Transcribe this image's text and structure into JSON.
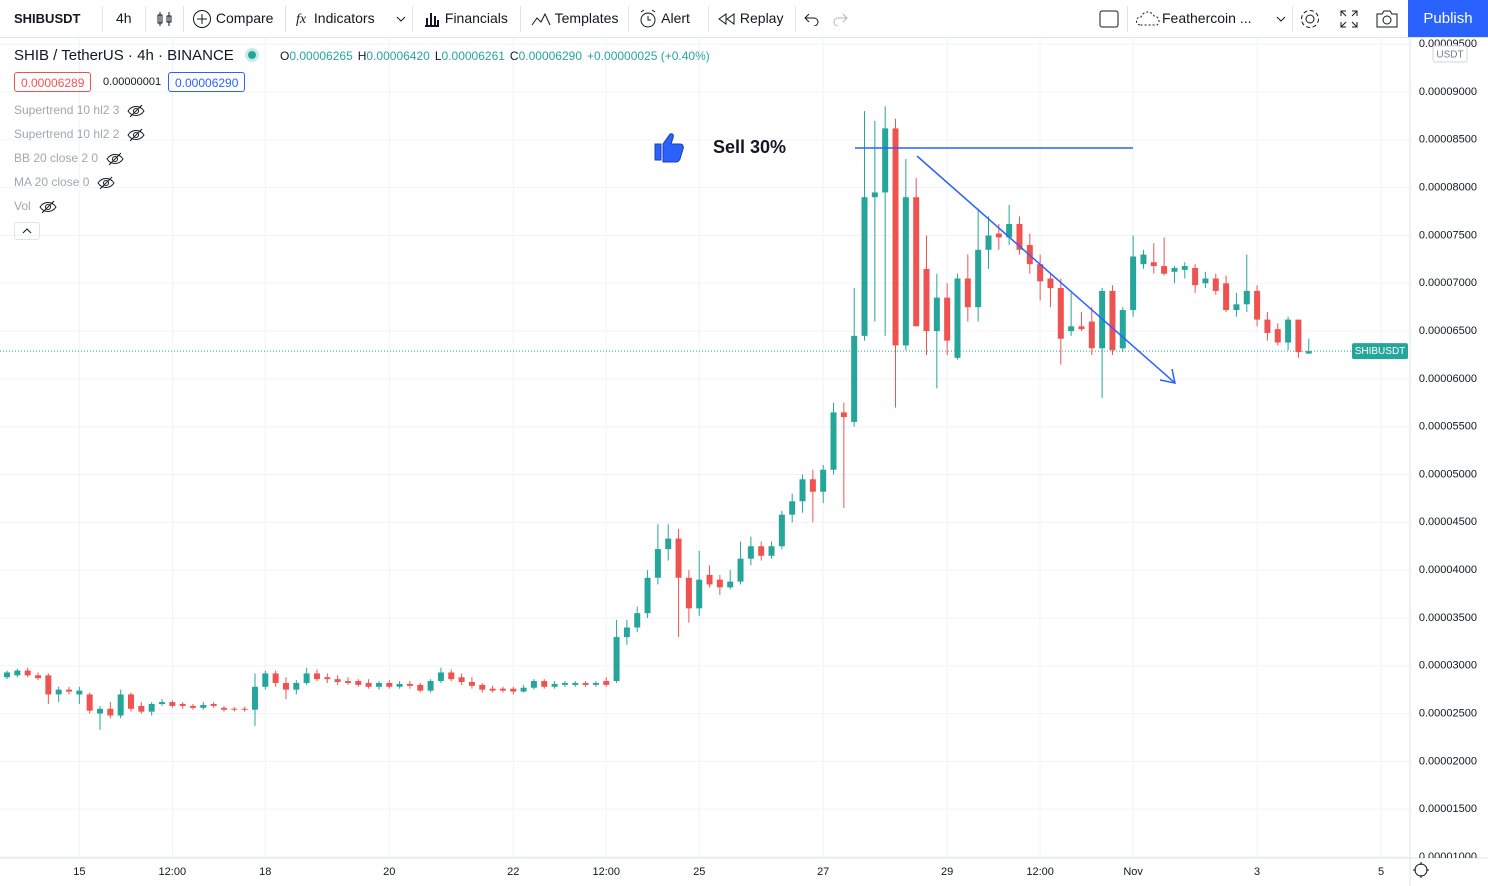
{
  "toolbar": {
    "symbol": "SHIBUSDT",
    "interval": "4h",
    "compare": "Compare",
    "indicators": "Indicators",
    "financials": "Financials",
    "templates": "Templates",
    "alert": "Alert",
    "replay": "Replay",
    "layout": "Feathercoin ...",
    "publish": "Publish"
  },
  "chart_data": {
    "type": "candlestick",
    "legend_title": "SHIB / TetherUS · 4h · BINANCE",
    "ohlc_legend": [
      {
        "key": "O",
        "text": "0.00006265"
      },
      {
        "key": "H",
        "text": "0.00006420"
      },
      {
        "key": "L",
        "text": "0.00006261"
      },
      {
        "key": "C",
        "text": "0.00006290"
      }
    ],
    "change": "+0.00000025 (+0.40%)",
    "price_boxes": [
      "0.00006289",
      "0.00000001",
      "0.00006290"
    ],
    "indicators": [
      "Supertrend 10 hl2 3",
      "Supertrend 10 hl2 2",
      "BB 20 close 2 0",
      "MA 20 close 0",
      "Vol"
    ],
    "axis_unit": "USDT",
    "price_label": "SHIBUSDT",
    "annotation": "Sell 30%",
    "up_color": "#26a69a",
    "down_color": "#ef5350",
    "grid": true,
    "candles": [
      [
        2.88e-05,
        2.95e-05,
        2.86e-05,
        2.93e-05
      ],
      [
        2.9e-05,
        2.97e-05,
        2.88e-05,
        2.95e-05
      ],
      [
        2.95e-05,
        2.98e-05,
        2.88e-05,
        2.9e-05
      ],
      [
        2.9e-05,
        2.93e-05,
        2.85e-05,
        2.87e-05
      ],
      [
        2.9e-05,
        2.92e-05,
        2.6e-05,
        2.7e-05
      ],
      [
        2.7e-05,
        2.78e-05,
        2.62e-05,
        2.75e-05
      ],
      [
        2.75e-05,
        2.78e-05,
        2.7e-05,
        2.73e-05
      ],
      [
        2.7e-05,
        2.78e-05,
        2.6e-05,
        2.74e-05
      ],
      [
        2.7e-05,
        2.72e-05,
        2.5e-05,
        2.53e-05
      ],
      [
        2.5e-05,
        2.58e-05,
        2.33e-05,
        2.55e-05
      ],
      [
        2.55e-05,
        2.62e-05,
        2.45e-05,
        2.48e-05
      ],
      [
        2.48e-05,
        2.75e-05,
        2.45e-05,
        2.7e-05
      ],
      [
        2.7e-05,
        2.72e-05,
        2.52e-05,
        2.55e-05
      ],
      [
        2.58e-05,
        2.62e-05,
        2.5e-05,
        2.52e-05
      ],
      [
        2.52e-05,
        2.62e-05,
        2.48e-05,
        2.6e-05
      ],
      [
        2.6e-05,
        2.65e-05,
        2.58e-05,
        2.62e-05
      ],
      [
        2.62e-05,
        2.64e-05,
        2.56e-05,
        2.58e-05
      ],
      [
        2.6e-05,
        2.62e-05,
        2.55e-05,
        2.58e-05
      ],
      [
        2.58e-05,
        2.6e-05,
        2.54e-05,
        2.56e-05
      ],
      [
        2.56e-05,
        2.62e-05,
        2.54e-05,
        2.59e-05
      ],
      [
        2.6e-05,
        2.62e-05,
        2.56e-05,
        2.58e-05
      ],
      [
        2.56e-05,
        2.58e-05,
        2.52e-05,
        2.54e-05
      ],
      [
        2.55e-05,
        2.57e-05,
        2.52e-05,
        2.54e-05
      ],
      [
        2.55e-05,
        2.57e-05,
        2.52e-05,
        2.54e-05
      ],
      [
        2.54e-05,
        2.92e-05,
        2.37e-05,
        2.78e-05
      ],
      [
        2.78e-05,
        2.95e-05,
        2.75e-05,
        2.92e-05
      ],
      [
        2.92e-05,
        2.95e-05,
        2.78e-05,
        2.82e-05
      ],
      [
        2.82e-05,
        2.88e-05,
        2.65e-05,
        2.75e-05
      ],
      [
        2.75e-05,
        2.85e-05,
        2.7e-05,
        2.82e-05
      ],
      [
        2.82e-05,
        2.98e-05,
        2.8e-05,
        2.92e-05
      ],
      [
        2.92e-05,
        2.96e-05,
        2.84e-05,
        2.86e-05
      ],
      [
        2.88e-05,
        2.92e-05,
        2.82e-05,
        2.86e-05
      ],
      [
        2.86e-05,
        2.9e-05,
        2.8e-05,
        2.83e-05
      ],
      [
        2.84e-05,
        2.88e-05,
        2.8e-05,
        2.82e-05
      ],
      [
        2.84e-05,
        2.86e-05,
        2.78e-05,
        2.8e-05
      ],
      [
        2.82e-05,
        2.86e-05,
        2.76e-05,
        2.78e-05
      ],
      [
        2.78e-05,
        2.84e-05,
        2.75e-05,
        2.82e-05
      ],
      [
        2.82e-05,
        2.85e-05,
        2.76e-05,
        2.78e-05
      ],
      [
        2.78e-05,
        2.84e-05,
        2.76e-05,
        2.81e-05
      ],
      [
        2.81e-05,
        2.84e-05,
        2.76e-05,
        2.79e-05
      ],
      [
        2.8e-05,
        2.82e-05,
        2.72e-05,
        2.74e-05
      ],
      [
        2.74e-05,
        2.86e-05,
        2.72e-05,
        2.84e-05
      ],
      [
        2.84e-05,
        2.98e-05,
        2.82e-05,
        2.93e-05
      ],
      [
        2.93e-05,
        2.96e-05,
        2.84e-05,
        2.86e-05
      ],
      [
        2.88e-05,
        2.92e-05,
        2.8e-05,
        2.83e-05
      ],
      [
        2.83e-05,
        2.88e-05,
        2.76e-05,
        2.79e-05
      ],
      [
        2.8e-05,
        2.82e-05,
        2.72e-05,
        2.75e-05
      ],
      [
        2.76e-05,
        2.79e-05,
        2.72e-05,
        2.74e-05
      ],
      [
        2.76e-05,
        2.78e-05,
        2.72e-05,
        2.74e-05
      ],
      [
        2.76e-05,
        2.78e-05,
        2.7e-05,
        2.73e-05
      ],
      [
        2.73e-05,
        2.8e-05,
        2.72e-05,
        2.77e-05
      ],
      [
        2.77e-05,
        2.86e-05,
        2.75e-05,
        2.84e-05
      ],
      [
        2.84e-05,
        2.86e-05,
        2.76e-05,
        2.78e-05
      ],
      [
        2.78e-05,
        2.84e-05,
        2.76e-05,
        2.81e-05
      ],
      [
        2.8e-05,
        2.84e-05,
        2.78e-05,
        2.82e-05
      ],
      [
        2.8e-05,
        2.84e-05,
        2.78e-05,
        2.82e-05
      ],
      [
        2.82e-05,
        2.84e-05,
        2.78e-05,
        2.8e-05
      ],
      [
        2.8e-05,
        2.84e-05,
        2.78e-05,
        2.82e-05
      ],
      [
        2.84e-05,
        2.88e-05,
        2.78e-05,
        2.8e-05
      ],
      [
        2.84e-05,
        3.48e-05,
        2.82e-05,
        3.3e-05
      ],
      [
        3.3e-05,
        3.48e-05,
        3.22e-05,
        3.4e-05
      ],
      [
        3.4e-05,
        3.62e-05,
        3.35e-05,
        3.55e-05
      ],
      [
        3.55e-05,
        4e-05,
        3.5e-05,
        3.92e-05
      ],
      [
        3.92e-05,
        4.48e-05,
        3.85e-05,
        4.22e-05
      ],
      [
        4.22e-05,
        4.48e-05,
        4.1e-05,
        4.33e-05
      ],
      [
        4.33e-05,
        4.43e-05,
        3.3e-05,
        3.92e-05
      ],
      [
        3.92e-05,
        4e-05,
        3.45e-05,
        3.6e-05
      ],
      [
        3.6e-05,
        4.2e-05,
        3.52e-05,
        3.9e-05
      ],
      [
        3.95e-05,
        4.05e-05,
        3.82e-05,
        3.85e-05
      ],
      [
        3.9e-05,
        3.95e-05,
        3.74e-05,
        3.82e-05
      ],
      [
        3.82e-05,
        4e-05,
        3.8e-05,
        3.88e-05
      ],
      [
        3.88e-05,
        4.3e-05,
        3.85e-05,
        4.12e-05
      ],
      [
        4.12e-05,
        4.35e-05,
        4.05e-05,
        4.25e-05
      ],
      [
        4.25e-05,
        4.3e-05,
        4.1e-05,
        4.15e-05
      ],
      [
        4.15e-05,
        4.3e-05,
        4.12e-05,
        4.25e-05
      ],
      [
        4.25e-05,
        4.62e-05,
        4.22e-05,
        4.58e-05
      ],
      [
        4.58e-05,
        4.8e-05,
        4.5e-05,
        4.72e-05
      ],
      [
        4.72e-05,
        5e-05,
        4.6e-05,
        4.95e-05
      ],
      [
        4.95e-05,
        5.05e-05,
        4.5e-05,
        4.82e-05
      ],
      [
        4.82e-05,
        5.1e-05,
        4.7e-05,
        5.05e-05
      ],
      [
        5.05e-05,
        5.75e-05,
        5e-05,
        5.65e-05
      ],
      [
        5.65e-05,
        5.75e-05,
        4.65e-05,
        5.6e-05
      ],
      [
        5.55e-05,
        6.95e-05,
        5.5e-05,
        6.45e-05
      ],
      [
        6.45e-05,
        8.8e-05,
        6.4e-05,
        7.9e-05
      ],
      [
        7.9e-05,
        8.7e-05,
        6.6e-05,
        7.95e-05
      ],
      [
        7.95e-05,
        8.85e-05,
        6.45e-05,
        8.62e-05
      ],
      [
        8.62e-05,
        8.72e-05,
        5.7e-05,
        6.35e-05
      ],
      [
        6.35e-05,
        8.3e-05,
        6.3e-05,
        7.9e-05
      ],
      [
        7.9e-05,
        8.1e-05,
        6.55e-05,
        6.55e-05
      ],
      [
        7.15e-05,
        7.5e-05,
        6.25e-05,
        6.5e-05
      ],
      [
        6.5e-05,
        7.1e-05,
        5.9e-05,
        6.85e-05
      ],
      [
        6.85e-05,
        7e-05,
        6.25e-05,
        6.4e-05
      ],
      [
        6.22e-05,
        7.1e-05,
        6.2e-05,
        7.05e-05
      ],
      [
        7.05e-05,
        7.3e-05,
        6.6e-05,
        6.75e-05
      ],
      [
        6.75e-05,
        7.78e-05,
        6.6e-05,
        7.35e-05
      ],
      [
        7.35e-05,
        7.7e-05,
        7.15e-05,
        7.5e-05
      ],
      [
        7.52e-05,
        7.62e-05,
        7.35e-05,
        7.48e-05
      ],
      [
        7.48e-05,
        7.82e-05,
        7.4e-05,
        7.62e-05
      ],
      [
        7.62e-05,
        7.7e-05,
        7.3e-05,
        7.35e-05
      ],
      [
        7.4e-05,
        7.52e-05,
        7.1e-05,
        7.2e-05
      ],
      [
        7.2e-05,
        7.3e-05,
        6.82e-05,
        7.02e-05
      ],
      [
        7.05e-05,
        7.1e-05,
        6.75e-05,
        6.95e-05
      ],
      [
        6.95e-05,
        7.05e-05,
        6.15e-05,
        6.42e-05
      ],
      [
        6.5e-05,
        6.9e-05,
        6.45e-05,
        6.55e-05
      ],
      [
        6.55e-05,
        6.7e-05,
        6.5e-05,
        6.52e-05
      ],
      [
        6.6e-05,
        6.75e-05,
        6.25e-05,
        6.32e-05
      ],
      [
        6.32e-05,
        6.95e-05,
        5.8e-05,
        6.92e-05
      ],
      [
        6.92e-05,
        6.98e-05,
        6.25e-05,
        6.3e-05
      ],
      [
        6.32e-05,
        6.75e-05,
        6.28e-05,
        6.72e-05
      ],
      [
        6.72e-05,
        7.5e-05,
        6.65e-05,
        7.28e-05
      ],
      [
        7.2e-05,
        7.35e-05,
        7.15e-05,
        7.3e-05
      ],
      [
        7.22e-05,
        7.42e-05,
        7.1e-05,
        7.18e-05
      ],
      [
        7.18e-05,
        7.48e-05,
        7.08e-05,
        7.1e-05
      ],
      [
        7.12e-05,
        7.18e-05,
        7e-05,
        7.16e-05
      ],
      [
        7.14e-05,
        7.22e-05,
        7.05e-05,
        7.18e-05
      ],
      [
        7.16e-05,
        7.2e-05,
        6.9e-05,
        6.98e-05
      ],
      [
        7e-05,
        7.12e-05,
        6.95e-05,
        7.05e-05
      ],
      [
        7.05e-05,
        7.1e-05,
        6.88e-05,
        6.92e-05
      ],
      [
        7e-05,
        7.08e-05,
        6.7e-05,
        6.72e-05
      ],
      [
        6.72e-05,
        6.9e-05,
        6.65e-05,
        6.78e-05
      ],
      [
        6.78e-05,
        7.3e-05,
        6.7e-05,
        6.92e-05
      ],
      [
        6.92e-05,
        6.98e-05,
        6.55e-05,
        6.62e-05
      ],
      [
        6.62e-05,
        6.7e-05,
        6.4e-05,
        6.48e-05
      ],
      [
        6.52e-05,
        6.58e-05,
        6.35e-05,
        6.38e-05
      ],
      [
        6.38e-05,
        6.65e-05,
        6.3e-05,
        6.62e-05
      ],
      [
        6.62e-05,
        6.62e-05,
        6.22e-05,
        6.28e-05
      ],
      [
        6.265e-05,
        6.42e-05,
        6.261e-05,
        6.29e-05
      ]
    ],
    "xlim": [
      -0.68,
      135.8
    ],
    "xticks": [
      {
        "value": 7,
        "label": "15"
      },
      {
        "value": 16,
        "label": "12:00"
      },
      {
        "value": 25,
        "label": "18"
      },
      {
        "value": 37,
        "label": "20"
      },
      {
        "value": 49,
        "label": "22"
      },
      {
        "value": 58,
        "label": "12:00"
      },
      {
        "value": 67,
        "label": "25"
      },
      {
        "value": 79,
        "label": "27"
      },
      {
        "value": 91,
        "label": "29"
      },
      {
        "value": 100,
        "label": "12:00"
      },
      {
        "value": 109,
        "label": "Nov"
      },
      {
        "value": 121,
        "label": "3"
      },
      {
        "value": 133,
        "label": "5"
      }
    ],
    "ylim": [
      9.895e-06,
      9.565e-05
    ],
    "yticks": [
      {
        "value": 1e-05,
        "label": "0.00001000"
      },
      {
        "value": 1.5e-05,
        "label": "0.00001500"
      },
      {
        "value": 2e-05,
        "label": "0.00002000"
      },
      {
        "value": 2.5e-05,
        "label": "0.00002500"
      },
      {
        "value": 3e-05,
        "label": "0.00003000"
      },
      {
        "value": 3.5e-05,
        "label": "0.00003500"
      },
      {
        "value": 4e-05,
        "label": "0.00004000"
      },
      {
        "value": 4.5e-05,
        "label": "0.00004500"
      },
      {
        "value": 5e-05,
        "label": "0.00005000"
      },
      {
        "value": 5.5e-05,
        "label": "0.00005500"
      },
      {
        "value": 6e-05,
        "label": "0.00006000"
      },
      {
        "value": 6.5e-05,
        "label": "0.00006500"
      },
      {
        "value": 7e-05,
        "label": "0.00007000"
      },
      {
        "value": 7.5e-05,
        "label": "0.00007500"
      },
      {
        "value": 8e-05,
        "label": "0.00008000"
      },
      {
        "value": 8.5e-05,
        "label": "0.00008500"
      },
      {
        "value": 9e-05,
        "label": "0.00009000"
      },
      {
        "value": 9.5e-05,
        "label": "0.00009500"
      }
    ]
  }
}
